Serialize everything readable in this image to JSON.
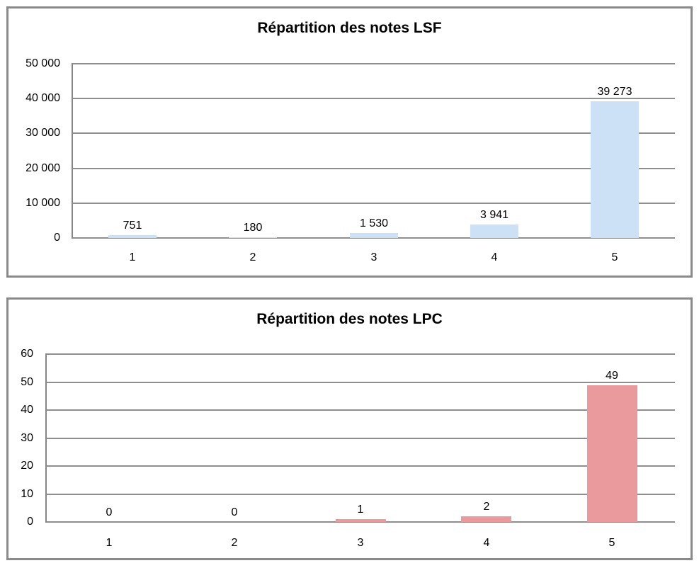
{
  "page": {
    "background_color": "#ffffff",
    "panel_border_color": "#8a8a8a"
  },
  "chart_data": [
    {
      "type": "bar",
      "title": "Répartition des notes LSF",
      "categories": [
        "1",
        "2",
        "3",
        "4",
        "5"
      ],
      "values": [
        751,
        180,
        1530,
        3941,
        39273
      ],
      "value_labels": [
        "751",
        "180",
        "1 530",
        "3 941",
        "39 273"
      ],
      "xlabel": "",
      "ylabel": "",
      "ylim": [
        0,
        50000
      ],
      "ytick_values": [
        0,
        10000,
        20000,
        30000,
        40000,
        50000
      ],
      "ytick_labels": [
        "0",
        "10 000",
        "20 000",
        "30 000",
        "40 000",
        "50 000"
      ],
      "bar_color": "#cce1f5",
      "gridline_color": "#8e8e8e",
      "axis_color": "#858585",
      "grid": true,
      "legend_position": "none"
    },
    {
      "type": "bar",
      "title": "Répartition des notes LPC",
      "categories": [
        "1",
        "2",
        "3",
        "4",
        "5"
      ],
      "values": [
        0,
        0,
        1,
        2,
        49
      ],
      "value_labels": [
        "0",
        "0",
        "1",
        "2",
        "49"
      ],
      "xlabel": "",
      "ylabel": "",
      "ylim": [
        0,
        60
      ],
      "ytick_values": [
        0,
        10,
        20,
        30,
        40,
        50,
        60
      ],
      "ytick_labels": [
        "0",
        "10",
        "20",
        "30",
        "40",
        "50",
        "60"
      ],
      "bar_color": "#ea999d",
      "gridline_color": "#8e8e8e",
      "axis_color": "#858585",
      "grid": true,
      "legend_position": "none"
    }
  ]
}
